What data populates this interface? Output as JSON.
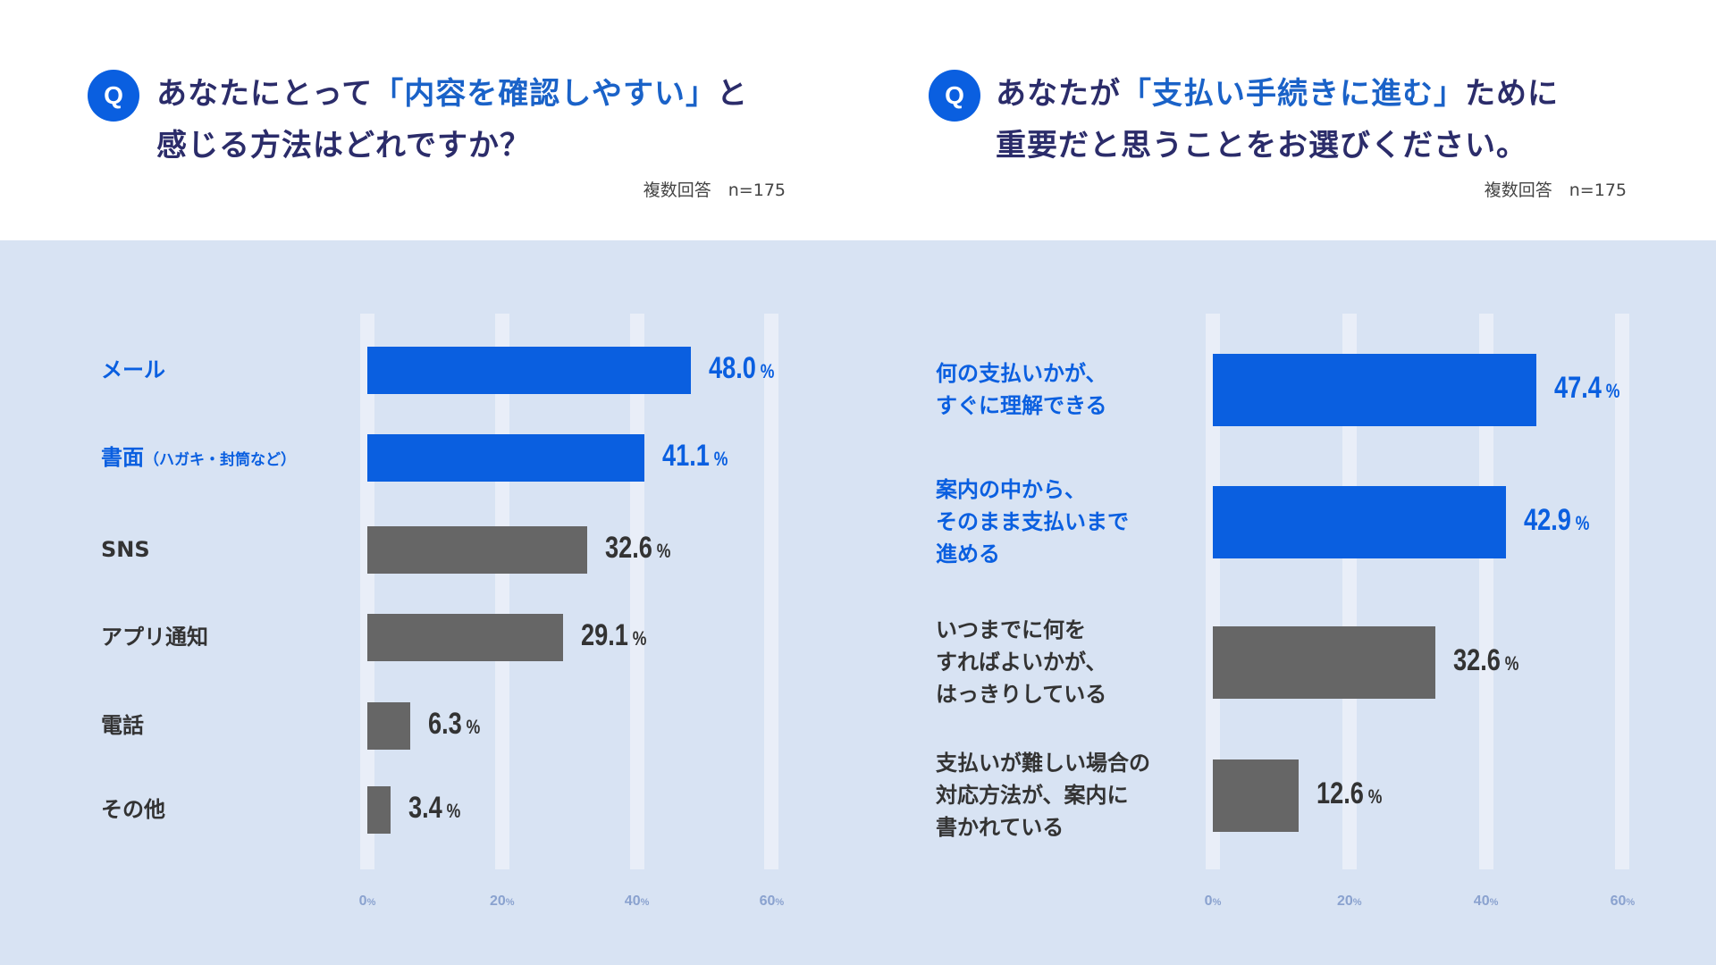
{
  "colors": {
    "highlight": "#0a5fe0",
    "other": "#666666"
  },
  "chart_data": [
    {
      "type": "bar",
      "orientation": "horizontal",
      "title_pre": "あなたにとって",
      "title_hl": "「内容を確認しやすい」",
      "title_post": "と",
      "title_line2": "感じる方法はどれですか？",
      "note": "複数回答　n=175",
      "q_icon": "Q",
      "categories": [
        "メール",
        "書面",
        "SNS",
        "アプリ通知",
        "電話",
        "その他"
      ],
      "category_sub": [
        "",
        "（ハガキ・封筒など）",
        "",
        "",
        "",
        ""
      ],
      "values": [
        48.0,
        41.1,
        32.6,
        29.1,
        6.3,
        3.4
      ],
      "highlighted": [
        true,
        true,
        false,
        false,
        false,
        false
      ],
      "unit": "%",
      "xlim": [
        0,
        60
      ],
      "xticks": [
        "0",
        "20",
        "40",
        "60"
      ]
    },
    {
      "type": "bar",
      "orientation": "horizontal",
      "title_pre": "あなたが",
      "title_hl": "「支払い手続きに進む」",
      "title_post": "ために",
      "title_line2": "重要だと思うことをお選びください。",
      "note": "複数回答　n=175",
      "q_icon": "Q",
      "categories": [
        "何の支払いかが、\nすぐに理解できる",
        "案内の中から、\nそのまま支払いまで\n進める",
        "いつまでに何を\nすればよいかが、\nはっきりしている",
        "支払いが難しい場合の\n対応方法が、案内に\n書かれている"
      ],
      "category_sub": [
        "",
        "",
        "",
        ""
      ],
      "values": [
        47.4,
        42.9,
        32.6,
        12.6
      ],
      "highlighted": [
        true,
        true,
        false,
        false
      ],
      "unit": "%",
      "xlim": [
        0,
        60
      ],
      "xticks": [
        "0",
        "20",
        "40",
        "60"
      ]
    }
  ]
}
